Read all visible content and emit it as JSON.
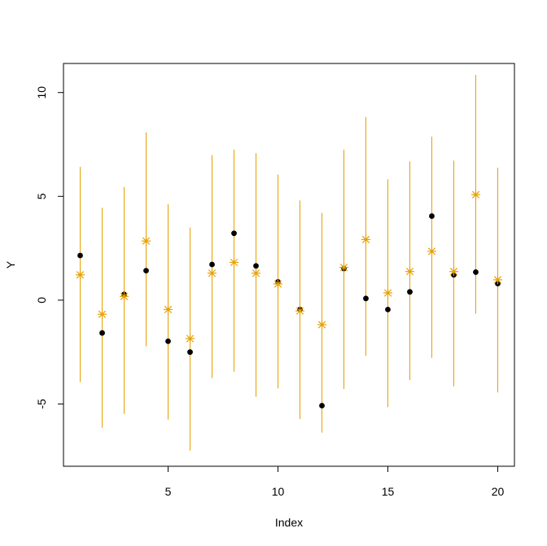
{
  "chart_data": {
    "type": "scatter",
    "xlabel": "Index",
    "ylabel": "Y",
    "xlim": [
      0.24,
      20.76
    ],
    "ylim": [
      -8.0,
      11.4
    ],
    "x_ticks": [
      5,
      10,
      15,
      20
    ],
    "y_ticks": [
      -5,
      0,
      5,
      10
    ],
    "x_tick_labels": [
      "5",
      "10",
      "15",
      "20"
    ],
    "y_tick_labels": [
      "-5",
      "0",
      "5",
      "10"
    ],
    "grid": false,
    "legend": "none",
    "colors": {
      "observed": "#000000",
      "predicted": "#e69f00",
      "interval": "#e69f00"
    },
    "x": [
      1,
      2,
      3,
      4,
      5,
      6,
      7,
      8,
      9,
      10,
      11,
      12,
      13,
      14,
      15,
      16,
      17,
      18,
      19,
      20
    ],
    "series": [
      {
        "marker": "filled-circle",
        "values": [
          2.15,
          -1.58,
          0.28,
          1.42,
          -1.98,
          -2.5,
          1.72,
          3.22,
          1.65,
          0.88,
          -0.45,
          -5.08,
          1.52,
          0.08,
          -0.45,
          0.4,
          4.05,
          1.22,
          1.35,
          0.8
        ]
      },
      {
        "marker": "asterisk",
        "values": [
          1.22,
          -0.68,
          0.18,
          2.85,
          -0.45,
          -1.85,
          1.3,
          1.82,
          1.3,
          0.78,
          -0.52,
          -1.18,
          1.58,
          2.92,
          0.35,
          1.38,
          2.35,
          1.38,
          5.08,
          0.98
        ],
        "lower": [
          -3.95,
          -6.15,
          -5.48,
          -2.22,
          -5.75,
          -7.25,
          -3.75,
          -3.45,
          -4.65,
          -4.25,
          -5.72,
          -6.38,
          -4.28,
          -2.68,
          -5.15,
          -3.85,
          -2.78,
          -4.15,
          -0.65,
          -4.45
        ],
        "upper": [
          6.42,
          4.45,
          5.45,
          8.08,
          4.62,
          3.5,
          6.98,
          7.25,
          7.08,
          6.05,
          4.8,
          4.2,
          7.25,
          8.82,
          5.82,
          6.68,
          7.88,
          6.72,
          10.85,
          6.38
        ]
      }
    ]
  }
}
